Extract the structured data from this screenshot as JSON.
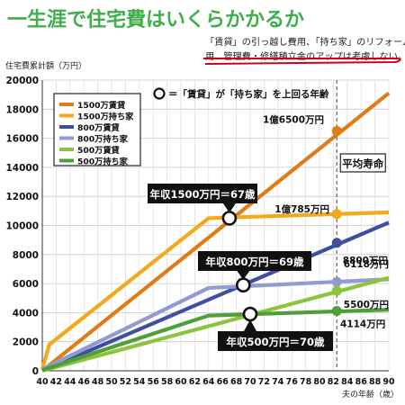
{
  "title": "一生涯で住宅費はいくらかかるか",
  "note": {
    "line1": "「賃貸」の引っ越し費用、「持ち家」のリフォーム費",
    "line2": "用、管理費・修繕積立金のアップは考慮しない。"
  },
  "colors": {
    "title": "#3fae49",
    "note_underline": "#d0021b",
    "rent1500": "#e07b1a",
    "own1500": "#f4a81c",
    "rent800": "#3f4da3",
    "own800": "#8f9bd1",
    "rent500": "#8cc43e",
    "own500": "#4f9e3a",
    "marker": "#8c8c8c",
    "callout_bg": "#111111",
    "callout_text": "#ffffff"
  },
  "chart_data": {
    "type": "line",
    "ylabel": "住宅費累計額（万円）",
    "xlabel": "夫の年齢（歳）",
    "xlim": [
      40,
      90
    ],
    "ylim": [
      0,
      20000
    ],
    "x_ticks": [
      40,
      42,
      44,
      46,
      48,
      50,
      52,
      54,
      56,
      58,
      60,
      62,
      64,
      66,
      68,
      70,
      72,
      74,
      76,
      78,
      80,
      82,
      84,
      86,
      88,
      90
    ],
    "y_ticks": [
      0,
      2000,
      4000,
      6000,
      8000,
      10000,
      12000,
      14000,
      16000,
      18000,
      20000
    ],
    "grid": true,
    "legend_position": "top-left",
    "series": [
      {
        "name": "1500万賃貸",
        "color_key": "rent1500",
        "points": [
          [
            40,
            0
          ],
          [
            90,
            19100
          ]
        ]
      },
      {
        "name": "1500万持ち家",
        "color_key": "own1500",
        "points": [
          [
            40,
            100
          ],
          [
            41,
            1800
          ],
          [
            64,
            10500
          ],
          [
            90,
            10900
          ]
        ]
      },
      {
        "name": "800万賃貸",
        "color_key": "rent800",
        "points": [
          [
            40,
            0
          ],
          [
            90,
            10200
          ]
        ]
      },
      {
        "name": "800万持ち家",
        "color_key": "own800",
        "points": [
          [
            40,
            100
          ],
          [
            64,
            5700
          ],
          [
            90,
            6300
          ]
        ]
      },
      {
        "name": "500万賃貸",
        "color_key": "rent500",
        "points": [
          [
            40,
            0
          ],
          [
            90,
            6400
          ]
        ]
      },
      {
        "name": "500万持ち家",
        "color_key": "own500",
        "points": [
          [
            40,
            50
          ],
          [
            64,
            3800
          ],
          [
            90,
            4200
          ]
        ]
      }
    ],
    "legend_marker_text": "＝「賃貸」が「持ち家」を上回る年齢",
    "crossovers": [
      {
        "x": 67,
        "y": 10500,
        "label": "年収1500万円＝67歳"
      },
      {
        "x": 69,
        "y": 5900,
        "label": "年収800万円＝69歳"
      },
      {
        "x": 70,
        "y": 3900,
        "label": "年収500万円＝70歳"
      }
    ],
    "lifespan": {
      "x": 82.5,
      "label": "平均寿命"
    },
    "lifespan_values": [
      {
        "y": 16500,
        "label": "1億6500万円"
      },
      {
        "y": 10785,
        "label": "1億785万円"
      },
      {
        "y": 8800,
        "label": "8800万円"
      },
      {
        "y": 6118,
        "label": "6118万円"
      },
      {
        "y": 5500,
        "label": "5500万円"
      },
      {
        "y": 4114,
        "label": "4114万円"
      }
    ]
  }
}
